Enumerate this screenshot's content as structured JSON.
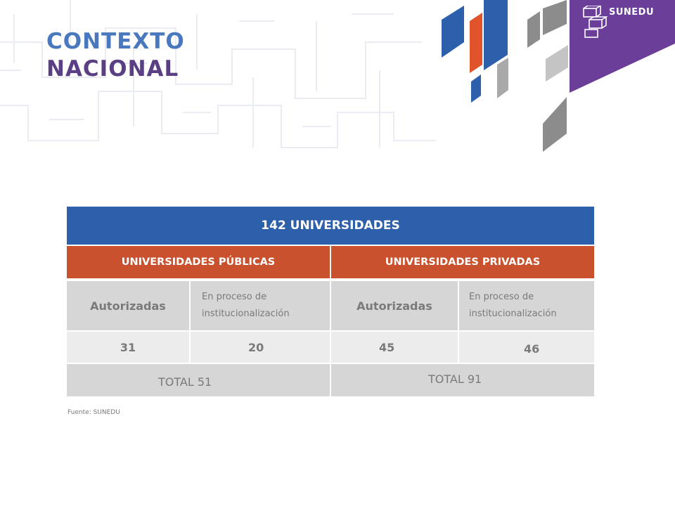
{
  "title": {
    "line1": "CONTEXTO",
    "line2": "NACIONAL"
  },
  "logo": {
    "text": "SUNEDU",
    "icon": "sunedu-cubes-icon"
  },
  "colors": {
    "blue": "#2d60ab",
    "orange": "#c9512e",
    "purple": "#6b3f99",
    "grey": "#d6d6d6"
  },
  "table": {
    "header": "142 UNIVERSIDADES",
    "groups": [
      "UNIVERSIDADES PÚBLICAS",
      "UNIVERSIDADES PRIVADAS"
    ],
    "labels": {
      "pub_auth": "Autorizadas",
      "pub_proc_1": "En proceso de",
      "pub_proc_2": "institucionalización",
      "priv_auth": "Autorizadas",
      "priv_proc_1": "En proceso de",
      "priv_proc_2": "institucionalización"
    },
    "values": {
      "pub_auth": "31",
      "pub_proc": "20",
      "priv_auth": "45",
      "priv_proc": "46"
    },
    "totals": {
      "pub": "TOTAL 51",
      "priv": "TOTAL 91"
    }
  },
  "source": "Fuente: SUNEDU"
}
